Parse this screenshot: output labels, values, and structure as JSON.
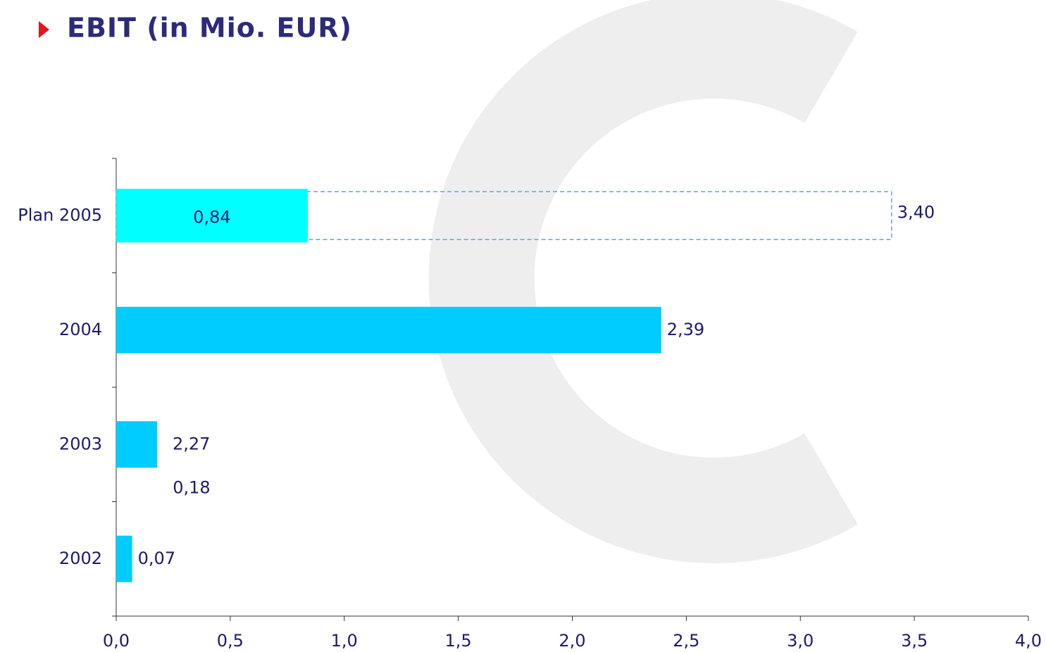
{
  "chart_data": {
    "type": "hbar",
    "title": "EBIT (in Mio. EUR)",
    "categories": [
      "Plan 2005",
      "2004",
      "2003",
      "2002"
    ],
    "series": [
      {
        "color": "#00ccff",
        "colors": [
          "#00ffff",
          "#00ccff",
          "#00ccff",
          "#00ccff"
        ],
        "values": [
          0.84,
          2.39,
          0.18,
          0.07
        ],
        "value_labels": [
          "0,84",
          "2,39",
          "0,18",
          "0,07"
        ]
      },
      {
        "color": "#6e9be0",
        "style": "dashed",
        "values": [
          3.4,
          null,
          null,
          null
        ],
        "value_labels": [
          "3,40",
          null,
          null,
          null
        ]
      }
    ],
    "annotations": [
      "2,27"
    ],
    "xlim": [
      0,
      4
    ],
    "xticks": [
      {
        "value": 0,
        "label": "0,0"
      },
      {
        "value": 0.5,
        "label": "0,5"
      },
      {
        "value": 1,
        "label": "1,0"
      },
      {
        "value": 1.5,
        "label": "1,5"
      },
      {
        "value": 2,
        "label": "2,0"
      },
      {
        "value": 2.5,
        "label": "2,5"
      },
      {
        "value": 3,
        "label": "3,0"
      },
      {
        "value": 3.5,
        "label": "3,5"
      },
      {
        "value": 4,
        "label": "4,0"
      }
    ]
  }
}
